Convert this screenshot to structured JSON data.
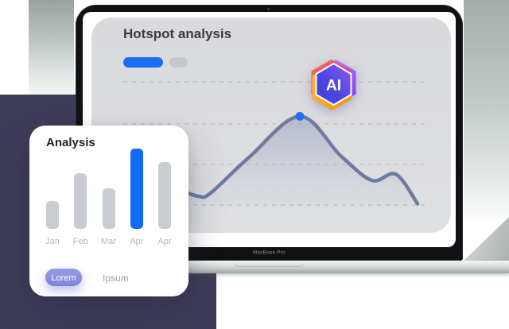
{
  "decor": {
    "navy_square_color": "#3e3c57",
    "band_color": "#9ba19f"
  },
  "laptop": {
    "brand_label": "MacBook Pro"
  },
  "dashboard": {
    "title": "Hotspot analysis",
    "legend_chips": [
      {
        "name": "primary",
        "color": "#1a6cf4"
      },
      {
        "name": "secondary",
        "color": "#c5c9ce"
      }
    ],
    "chart_data": {
      "type": "line",
      "style": "smooth-area",
      "title": "Hotspot analysis",
      "xlabel": "",
      "ylabel": "",
      "x": [
        0,
        9,
        14,
        30,
        51,
        68,
        81,
        91,
        100
      ],
      "values": [
        13,
        7,
        10,
        39,
        72,
        40,
        20,
        25,
        1
      ],
      "highlight_index": 4,
      "gridline_values": [
        0,
        33,
        66,
        100
      ],
      "grid_style": "dashed",
      "line_color": "#6d7ba1",
      "point_color": "#1e6ef6",
      "area_color": "#8b96b8",
      "legend_position": "top-left"
    }
  },
  "ai_badge": {
    "label": "AI",
    "colors": {
      "red": "#e8344f",
      "purple": "#8b3cf0",
      "orange": "#f59b13",
      "blue": "#4a3fdd"
    }
  },
  "analysis_card": {
    "title": "Analysis",
    "chart_data": {
      "type": "bar",
      "categories": [
        "Jan",
        "Feb",
        "Mar",
        "Apr",
        "Apr"
      ],
      "values": [
        35,
        70,
        51,
        101,
        84
      ],
      "highlight_index": 3,
      "bar_color": "#c9cdd2",
      "highlight_color": "#146bfa",
      "title": "Analysis",
      "xlabel": "",
      "ylabel": ""
    },
    "buttons": [
      {
        "label": "Lorem",
        "variant": "primary"
      },
      {
        "label": "Ipsum",
        "variant": "ghost"
      }
    ]
  }
}
